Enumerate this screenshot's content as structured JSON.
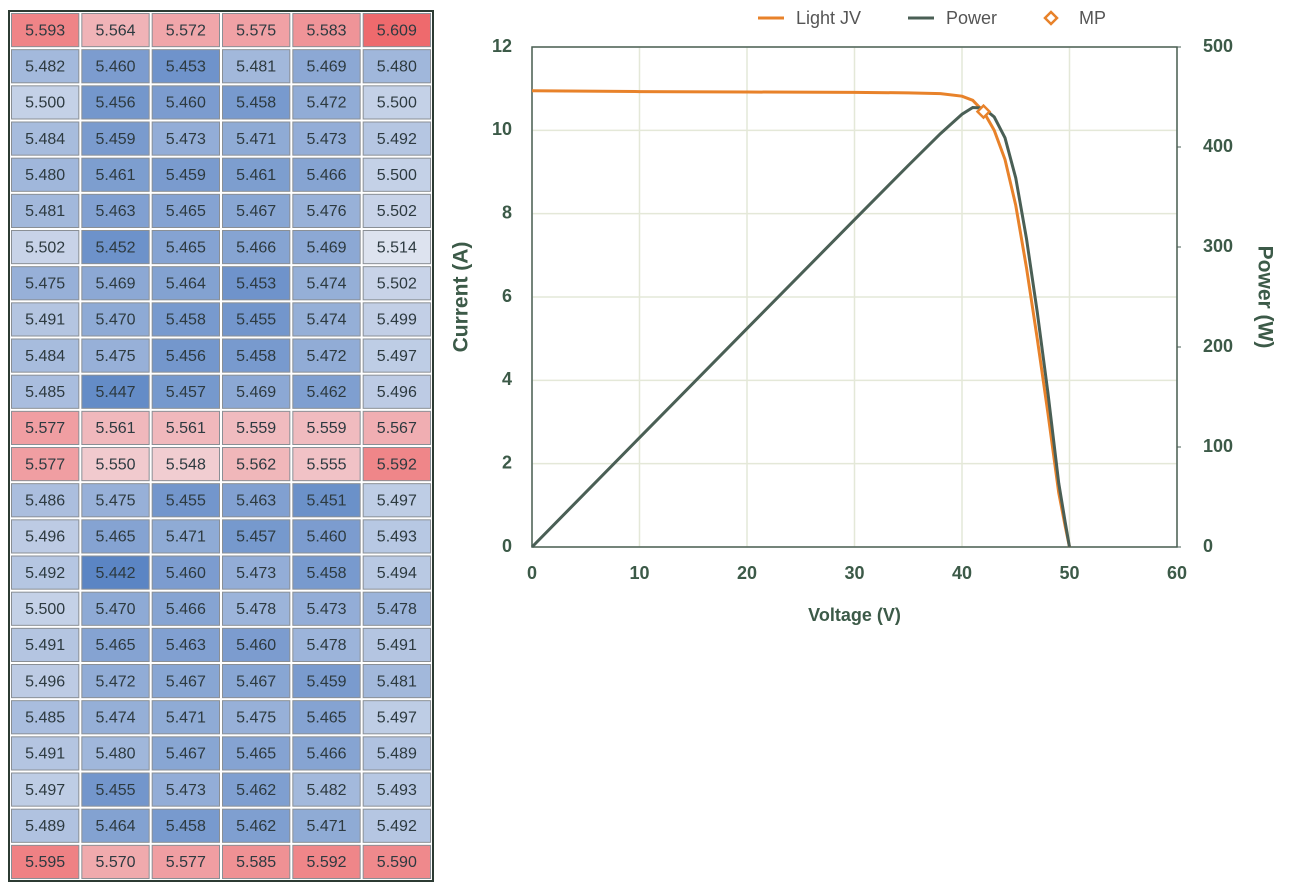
{
  "chart_data": [
    {
      "type": "heatmap",
      "values": [
        [
          5.593,
          5.564,
          5.572,
          5.575,
          5.583,
          5.609
        ],
        [
          5.482,
          5.46,
          5.453,
          5.481,
          5.469,
          5.48
        ],
        [
          5.5,
          5.456,
          5.46,
          5.458,
          5.472,
          5.5
        ],
        [
          5.484,
          5.459,
          5.473,
          5.471,
          5.473,
          5.492
        ],
        [
          5.48,
          5.461,
          5.459,
          5.461,
          5.466,
          5.5
        ],
        [
          5.481,
          5.463,
          5.465,
          5.467,
          5.476,
          5.502
        ],
        [
          5.502,
          5.452,
          5.465,
          5.466,
          5.469,
          5.514
        ],
        [
          5.475,
          5.469,
          5.464,
          5.453,
          5.474,
          5.502
        ],
        [
          5.491,
          5.47,
          5.458,
          5.455,
          5.474,
          5.499
        ],
        [
          5.484,
          5.475,
          5.456,
          5.458,
          5.472,
          5.497
        ],
        [
          5.485,
          5.447,
          5.457,
          5.469,
          5.462,
          5.496
        ],
        [
          5.577,
          5.561,
          5.561,
          5.559,
          5.559,
          5.567
        ],
        [
          5.577,
          5.55,
          5.548,
          5.562,
          5.555,
          5.592
        ],
        [
          5.486,
          5.475,
          5.455,
          5.463,
          5.451,
          5.497
        ],
        [
          5.496,
          5.465,
          5.471,
          5.457,
          5.46,
          5.493
        ],
        [
          5.492,
          5.442,
          5.46,
          5.473,
          5.458,
          5.494
        ],
        [
          5.5,
          5.47,
          5.466,
          5.478,
          5.473,
          5.478
        ],
        [
          5.491,
          5.465,
          5.463,
          5.46,
          5.478,
          5.491
        ],
        [
          5.496,
          5.472,
          5.467,
          5.467,
          5.459,
          5.481
        ],
        [
          5.485,
          5.474,
          5.471,
          5.475,
          5.465,
          5.497
        ],
        [
          5.491,
          5.48,
          5.467,
          5.465,
          5.466,
          5.489
        ],
        [
          5.497,
          5.455,
          5.473,
          5.462,
          5.482,
          5.493
        ],
        [
          5.489,
          5.464,
          5.458,
          5.462,
          5.471,
          5.492
        ],
        [
          5.595,
          5.57,
          5.577,
          5.585,
          5.592,
          5.59
        ]
      ],
      "value_labels": [
        [
          "5.593",
          "5.564",
          "5.572",
          "5.575",
          "5.583",
          "5.609"
        ],
        [
          "5.482",
          "5.460",
          "5.453",
          "5.481",
          "5.469",
          "5.480"
        ],
        [
          "5.500",
          "5.456",
          "5.460",
          "5.458",
          "5.472",
          "5.500"
        ],
        [
          "5.484",
          "5.459",
          "5.473",
          "5.471",
          "5.473",
          "5.492"
        ],
        [
          "5.480",
          "5.461",
          "5.459",
          "5.461",
          "5.466",
          "5.500"
        ],
        [
          "5.481",
          "5.463",
          "5.465",
          "5.467",
          "5.476",
          "5.502"
        ],
        [
          "5.502",
          "5.452",
          "5.465",
          "5.466",
          "5.469",
          "5.514"
        ],
        [
          "5.475",
          "5.469",
          "5.464",
          "5.453",
          "5.474",
          "5.502"
        ],
        [
          "5.491",
          "5.470",
          "5.458",
          "5.455",
          "5.474",
          "5.499"
        ],
        [
          "5.484",
          "5.475",
          "5.456",
          "5.458",
          "5.472",
          "5.497"
        ],
        [
          "5.485",
          "5.447",
          "5.457",
          "5.469",
          "5.462",
          "5.496"
        ],
        [
          "5.577",
          "5.561",
          "5.561",
          "5.559",
          "5.559",
          "5.567"
        ],
        [
          "5.577",
          "5.550",
          "5.548",
          "5.562",
          "5.555",
          "5.592"
        ],
        [
          "5.486",
          "5.475",
          "5.455",
          "5.463",
          "5.451",
          "5.497"
        ],
        [
          "5.496",
          "5.465",
          "5.471",
          "5.457",
          "5.460",
          "5.493"
        ],
        [
          "5.492",
          "5.442",
          "5.460",
          "5.473",
          "5.458",
          "5.494"
        ],
        [
          "5.500",
          "5.470",
          "5.466",
          "5.478",
          "5.473",
          "5.478"
        ],
        [
          "5.491",
          "5.465",
          "5.463",
          "5.460",
          "5.478",
          "5.491"
        ],
        [
          "5.496",
          "5.472",
          "5.467",
          "5.467",
          "5.459",
          "5.481"
        ],
        [
          "5.485",
          "5.474",
          "5.471",
          "5.475",
          "5.465",
          "5.497"
        ],
        [
          "5.491",
          "5.480",
          "5.467",
          "5.465",
          "5.466",
          "5.489"
        ],
        [
          "5.497",
          "5.455",
          "5.473",
          "5.462",
          "5.482",
          "5.493"
        ],
        [
          "5.489",
          "5.464",
          "5.458",
          "5.462",
          "5.471",
          "5.492"
        ],
        [
          "5.595",
          "5.570",
          "5.577",
          "5.585",
          "5.592",
          "5.590"
        ]
      ],
      "low_color": "#5b85c4",
      "mid_color": "#f2f2f6",
      "high_color": "#ee6a6d"
    },
    {
      "type": "line",
      "x_label": "Voltage (V)",
      "y_label": "Current (A)",
      "y2_label": "Power (W)",
      "x": [
        0,
        10,
        20,
        30,
        35,
        38,
        40,
        41,
        42,
        43,
        44,
        45,
        46,
        47,
        48,
        49,
        49.6,
        50
      ],
      "series": [
        {
          "name": "Light JV",
          "color": "#e8822a",
          "values": [
            10.95,
            10.93,
            10.92,
            10.91,
            10.9,
            10.88,
            10.82,
            10.72,
            10.45,
            10.0,
            9.3,
            8.2,
            6.7,
            5.0,
            3.2,
            1.3,
            0.5,
            0
          ]
        },
        {
          "name": "Power",
          "color": "#4a5f55",
          "axis": "y2",
          "values": [
            0,
            109.3,
            218.4,
            327.3,
            381.5,
            413.4,
            432.8,
            439.5,
            438.9,
            430,
            409.2,
            369,
            308.2,
            235,
            153.6,
            63.7,
            24.8,
            0
          ]
        },
        {
          "name": "MP",
          "color": "#e8822a",
          "marker": "diamond",
          "x": [
            42
          ],
          "values": [
            10.45
          ]
        }
      ],
      "xlim": [
        0,
        60
      ],
      "xticks": [
        0,
        10,
        20,
        30,
        40,
        50,
        60
      ],
      "ylim": [
        0,
        12
      ],
      "yticks": [
        0,
        2,
        4,
        6,
        8,
        10,
        12
      ],
      "y2lim": [
        0,
        500
      ],
      "y2ticks": [
        0,
        100,
        200,
        300,
        400,
        500
      ],
      "grid": true,
      "legend": "top"
    }
  ]
}
